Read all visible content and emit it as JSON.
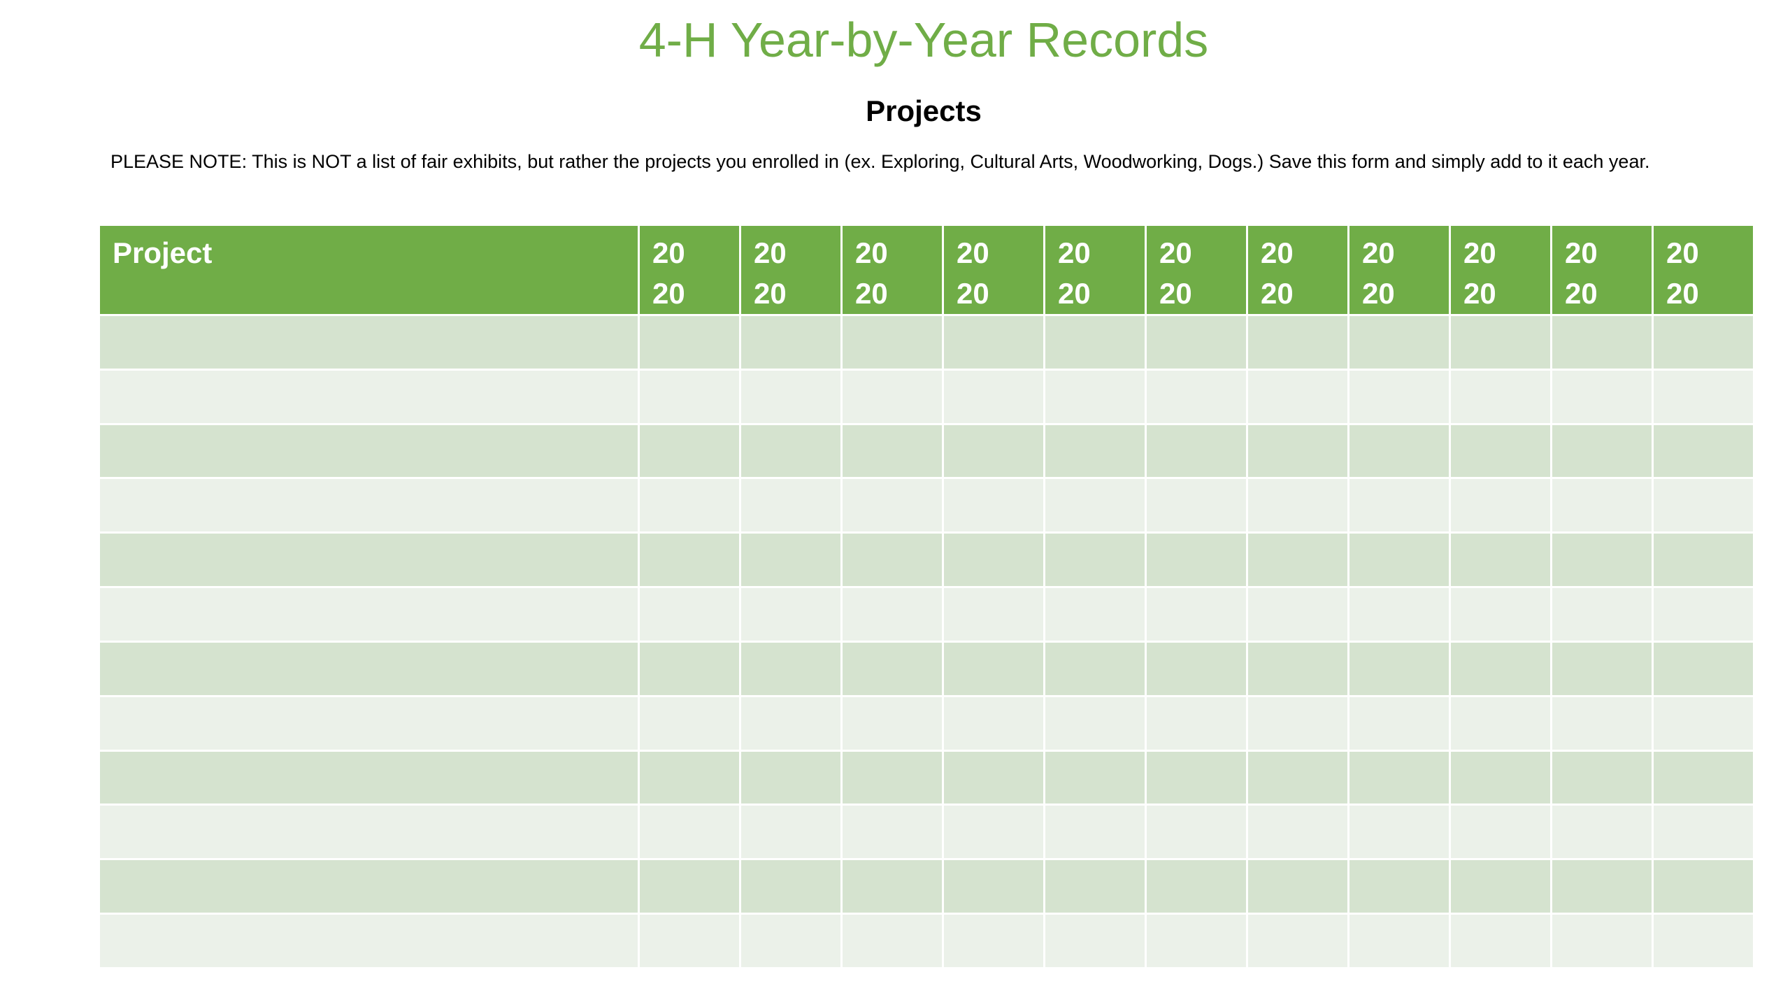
{
  "title": "4-H Year-by-Year Records",
  "subtitle": "Projects",
  "note": "PLEASE NOTE: This is NOT a list of fair exhibits, but rather the projects you enrolled in (ex. Exploring, Cultural Arts, Woodworking, Dogs.)  Save this form and simply add to it each year.",
  "table": {
    "header_project": "Project",
    "year_headers": [
      "20\n20",
      "20\n20",
      "20\n20",
      "20\n20",
      "20\n20",
      "20\n20",
      "20\n20",
      "20\n20",
      "20\n20",
      "20\n20",
      "20\n20"
    ],
    "row_count": 12
  },
  "colors": {
    "accent_green": "#70ad47",
    "row_dark": "#d5e3cf",
    "row_light": "#ebf1e9"
  }
}
